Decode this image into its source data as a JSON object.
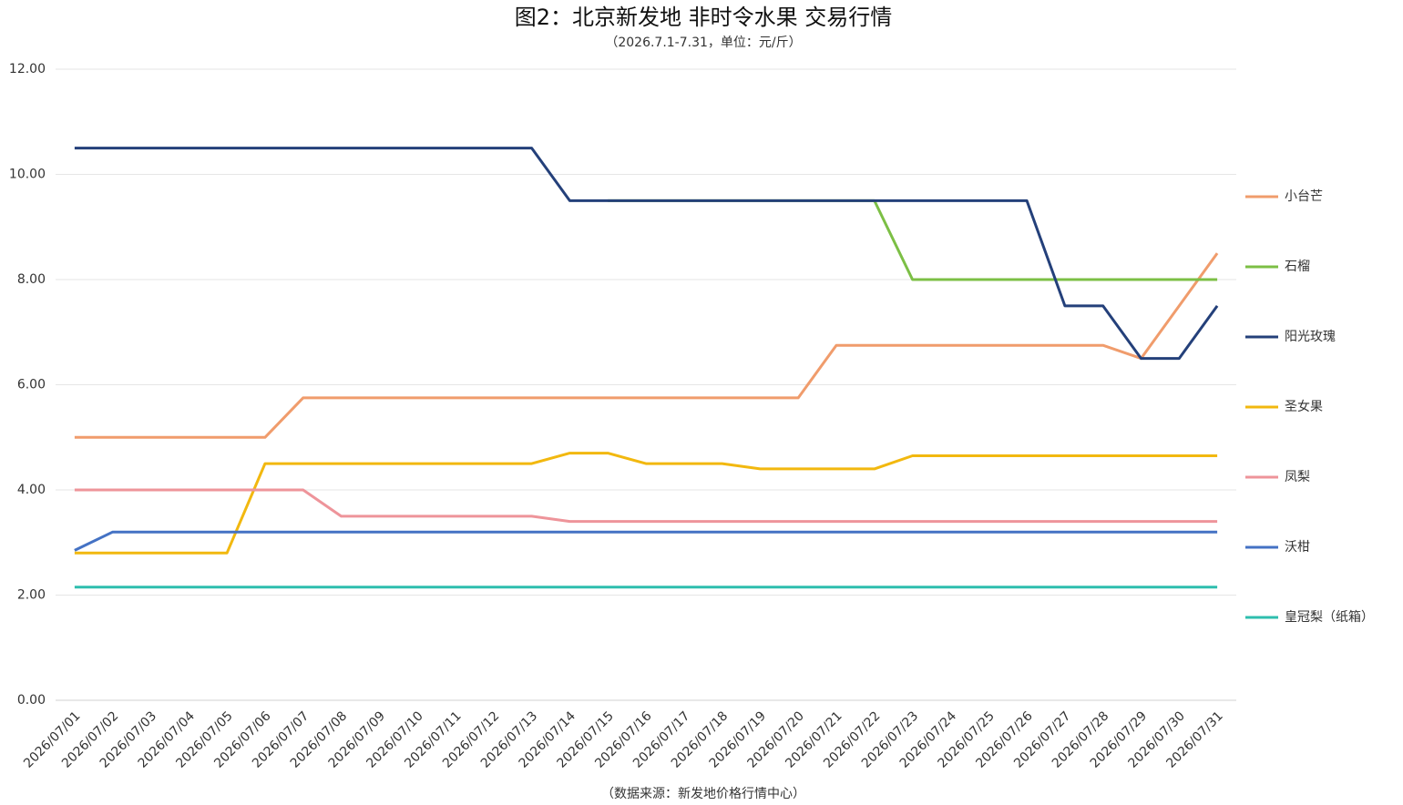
{
  "chart_data": {
    "type": "line",
    "title": "图2：北京新发地 非时令水果 交易行情",
    "subtitle": "（2026.7.1-7.31，单位：元/斤）",
    "source": "（数据来源：新发地价格行情中心）",
    "categories": [
      "2026/07/01",
      "2026/07/02",
      "2026/07/03",
      "2026/07/04",
      "2026/07/05",
      "2026/07/06",
      "2026/07/07",
      "2026/07/08",
      "2026/07/09",
      "2026/07/10",
      "2026/07/11",
      "2026/07/12",
      "2026/07/13",
      "2026/07/14",
      "2026/07/15",
      "2026/07/16",
      "2026/07/17",
      "2026/07/18",
      "2026/07/19",
      "2026/07/20",
      "2026/07/21",
      "2026/07/22",
      "2026/07/23",
      "2026/07/24",
      "2026/07/25",
      "2026/07/26",
      "2026/07/27",
      "2026/07/28",
      "2026/07/29",
      "2026/07/30",
      "2026/07/31"
    ],
    "ylim": [
      0,
      12
    ],
    "yticks": [
      {
        "value": 0,
        "label": "0.00"
      },
      {
        "value": 2,
        "label": "2.00"
      },
      {
        "value": 4,
        "label": "4.00"
      },
      {
        "value": 6,
        "label": "6.00"
      },
      {
        "value": 8,
        "label": "8.00"
      },
      {
        "value": 10,
        "label": "10.00"
      },
      {
        "value": 12,
        "label": "12.00"
      }
    ],
    "grid": true,
    "legend": "right",
    "series": [
      {
        "name": "小台芒",
        "color": "#F09C6C",
        "values": [
          5,
          5,
          5,
          5,
          5,
          5,
          5.75,
          5.75,
          5.75,
          5.75,
          5.75,
          5.75,
          5.75,
          5.75,
          5.75,
          5.75,
          5.75,
          5.75,
          5.75,
          5.75,
          6.75,
          6.75,
          6.75,
          6.75,
          6.75,
          6.75,
          6.75,
          6.75,
          6.5,
          7.5,
          8.5
        ]
      },
      {
        "name": "石榴",
        "color": "#7CBF45",
        "values": [
          null,
          null,
          null,
          null,
          null,
          null,
          null,
          null,
          null,
          null,
          null,
          null,
          null,
          null,
          9.5,
          9.5,
          9.5,
          9.5,
          9.5,
          9.5,
          9.5,
          9.5,
          8,
          8,
          8,
          8,
          8,
          8,
          8,
          8,
          8
        ]
      },
      {
        "name": "阳光玫瑰",
        "color": "#24407A",
        "values": [
          10.5,
          10.5,
          10.5,
          10.5,
          10.5,
          10.5,
          10.5,
          10.5,
          10.5,
          10.5,
          10.5,
          10.5,
          10.5,
          9.5,
          9.5,
          9.5,
          9.5,
          9.5,
          9.5,
          9.5,
          9.5,
          9.5,
          9.5,
          9.5,
          9.5,
          9.5,
          7.5,
          7.5,
          6.5,
          6.5,
          7.5
        ]
      },
      {
        "name": "圣女果",
        "color": "#F2B80F",
        "values": [
          2.8,
          2.8,
          2.8,
          2.8,
          2.8,
          4.5,
          4.5,
          4.5,
          4.5,
          4.5,
          4.5,
          4.5,
          4.5,
          4.7,
          4.7,
          4.5,
          4.5,
          4.5,
          4.4,
          4.4,
          4.4,
          4.4,
          4.65,
          4.65,
          4.65,
          4.65,
          4.65,
          4.65,
          4.65,
          4.65,
          4.65
        ]
      },
      {
        "name": "凤梨",
        "color": "#EE949A",
        "values": [
          4,
          4,
          4,
          4,
          4,
          4,
          4,
          3.5,
          3.5,
          3.5,
          3.5,
          3.5,
          3.5,
          3.4,
          3.4,
          3.4,
          3.4,
          3.4,
          3.4,
          3.4,
          3.4,
          3.4,
          3.4,
          3.4,
          3.4,
          3.4,
          3.4,
          3.4,
          3.4,
          3.4,
          3.4
        ]
      },
      {
        "name": "沃柑",
        "color": "#4472C4",
        "values": [
          2.85,
          3.2,
          3.2,
          3.2,
          3.2,
          3.2,
          3.2,
          3.2,
          3.2,
          3.2,
          3.2,
          3.2,
          3.2,
          3.2,
          3.2,
          3.2,
          3.2,
          3.2,
          3.2,
          3.2,
          3.2,
          3.2,
          3.2,
          3.2,
          3.2,
          3.2,
          3.2,
          3.2,
          3.2,
          3.2,
          3.2
        ]
      },
      {
        "name": "皇冠梨（纸箱）",
        "color": "#2EBEAE",
        "values": [
          2.15,
          2.15,
          2.15,
          2.15,
          2.15,
          2.15,
          2.15,
          2.15,
          2.15,
          2.15,
          2.15,
          2.15,
          2.15,
          2.15,
          2.15,
          2.15,
          2.15,
          2.15,
          2.15,
          2.15,
          2.15,
          2.15,
          2.15,
          2.15,
          2.15,
          2.15,
          2.15,
          2.15,
          2.15,
          2.15,
          2.15
        ]
      }
    ]
  }
}
